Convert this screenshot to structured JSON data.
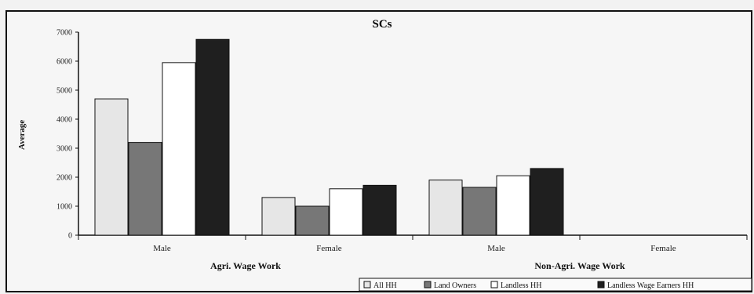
{
  "chart_data": {
    "type": "bar",
    "title": "SCs",
    "ylabel": "Average",
    "ylim": [
      0,
      7000
    ],
    "yticks": [
      "0",
      "1000",
      "2000",
      "3000",
      "4000",
      "5000",
      "6000",
      "7000"
    ],
    "groups": [
      "Agri. Wage Work",
      "Non-Agri. Wage Work"
    ],
    "categories": [
      "Male",
      "Female",
      "Male",
      "Female"
    ],
    "series": [
      {
        "name": "All HH",
        "values": [
          4700,
          1300,
          1900,
          0
        ],
        "color": "#e6e6e6"
      },
      {
        "name": "Land Owners",
        "values": [
          3200,
          1000,
          1650,
          0
        ],
        "color": "#777777"
      },
      {
        "name": "Landless HH",
        "values": [
          5950,
          1600,
          2050,
          0
        ],
        "color": "#ffffff"
      },
      {
        "name": "Landless Wage Earners HH",
        "values": [
          6750,
          1720,
          2300,
          0
        ],
        "color": "#1f1f1f"
      }
    ],
    "grid": false,
    "legend_position": "bottom-right"
  }
}
